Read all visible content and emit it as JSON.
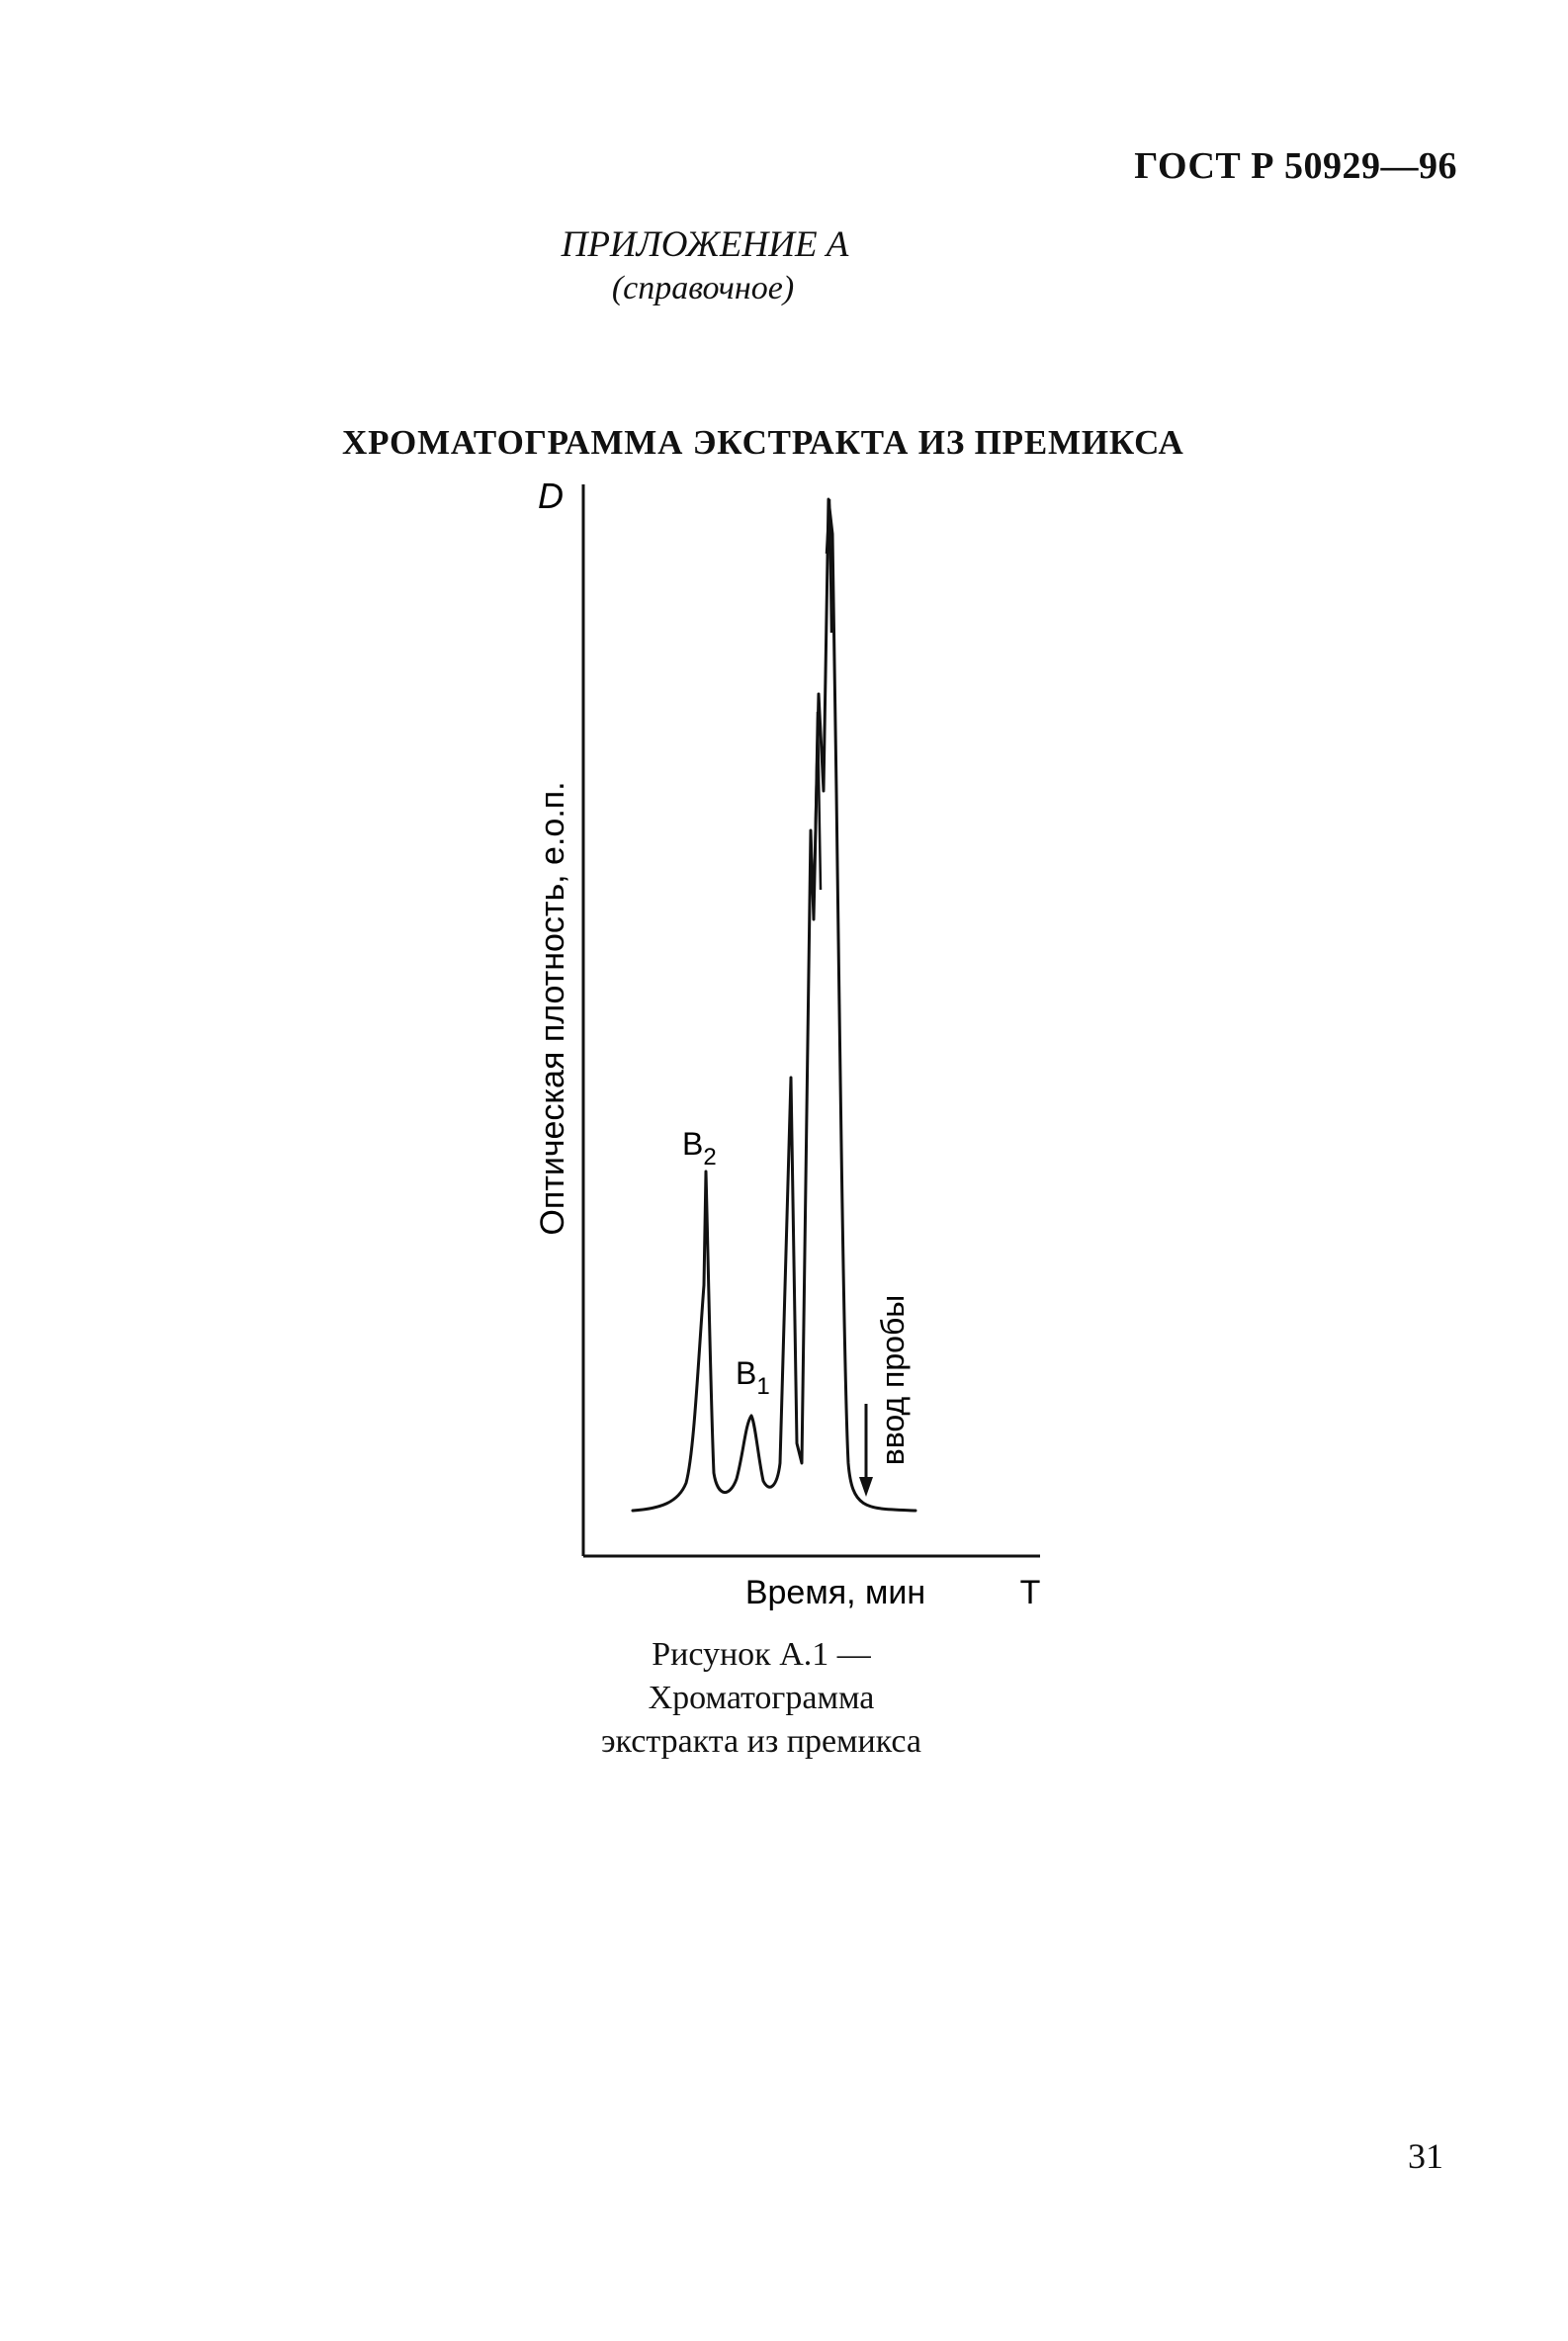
{
  "header": {
    "standard_code": "ГОСТ Р 50929—96"
  },
  "appendix": {
    "title": "ПРИЛОЖЕНИЕ А",
    "subtitle": "(справочное)"
  },
  "heading": "ХРОМАТОГРАММА ЭКСТРАКТА ИЗ ПРЕМИКСА",
  "chart_data": {
    "type": "line",
    "title": "",
    "y_axis_symbol": "D",
    "ylabel": "Оптическая плотность, е.о.п.",
    "xlabel": "Время, мин",
    "x_axis_symbol": "T",
    "grid": false,
    "legend": "none",
    "peak_labels": [
      "B2",
      "B1"
    ],
    "annotation": "ввод пробы",
    "curve_color": "#111111"
  },
  "caption": {
    "lines": [
      "Рисунок А.1 —",
      "Хроматограмма",
      "экстракта из премикса"
    ]
  },
  "page_number": "31"
}
